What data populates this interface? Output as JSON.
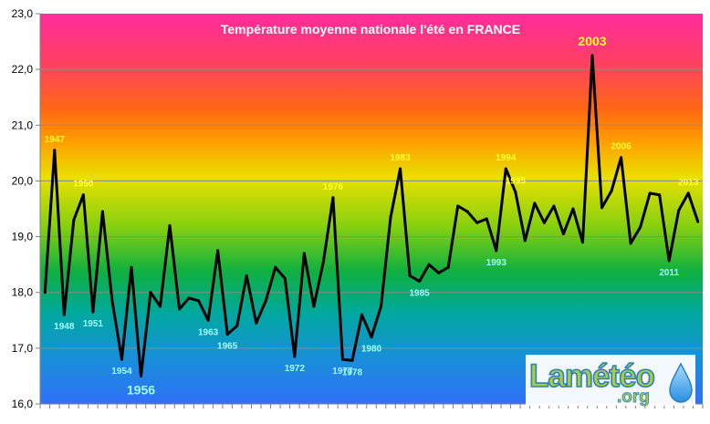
{
  "chart_data": {
    "type": "line",
    "title": "Température moyenne nationale l'été en FRANCE",
    "xlabel": "",
    "ylabel": "",
    "ylim": [
      16,
      23
    ],
    "y_ticks": [
      "16,0",
      "17,0",
      "18,0",
      "19,0",
      "20,0",
      "21,0",
      "22,0",
      "23,0"
    ],
    "grid": true,
    "legend": "none",
    "background": "vertical rainbow gradient (pink/red top, orange, yellow, green, teal, blue bottom)",
    "series": [
      {
        "color": "#000000",
        "x": [
          1946,
          1947,
          1948,
          1949,
          1950,
          1951,
          1952,
          1953,
          1954,
          1955,
          1956,
          1957,
          1958,
          1959,
          1960,
          1961,
          1962,
          1963,
          1964,
          1965,
          1966,
          1967,
          1968,
          1969,
          1970,
          1971,
          1972,
          1973,
          1974,
          1975,
          1976,
          1977,
          1978,
          1979,
          1980,
          1981,
          1982,
          1983,
          1984,
          1985,
          1986,
          1987,
          1988,
          1989,
          1990,
          1991,
          1992,
          1993,
          1994,
          1995,
          1996,
          1997,
          1998,
          1999,
          2000,
          2001,
          2002,
          2003,
          2004,
          2005,
          2006,
          2007,
          2008,
          2009,
          2010,
          2011,
          2012,
          2013,
          2014
        ],
        "values": [
          18.0,
          20.55,
          17.6,
          19.3,
          19.75,
          17.65,
          19.45,
          17.85,
          16.8,
          18.45,
          16.5,
          18.0,
          17.75,
          19.2,
          17.7,
          17.9,
          17.85,
          17.5,
          18.75,
          17.25,
          17.4,
          18.3,
          17.45,
          17.85,
          18.45,
          18.25,
          16.85,
          18.7,
          17.75,
          18.55,
          19.7,
          16.8,
          16.78,
          17.6,
          17.2,
          17.75,
          19.35,
          20.22,
          18.3,
          18.2,
          18.5,
          18.35,
          18.45,
          19.55,
          19.45,
          19.25,
          19.32,
          18.75,
          20.22,
          19.8,
          18.93,
          19.6,
          19.25,
          19.55,
          19.05,
          19.5,
          18.9,
          22.25,
          19.52,
          19.82,
          20.42,
          18.88,
          19.17,
          19.78,
          19.75,
          18.57,
          19.47,
          19.78,
          19.27
        ]
      }
    ],
    "annotations": [
      {
        "label": "1947",
        "year": 1947,
        "color": "#ffff33"
      },
      {
        "label": "1948",
        "year": 1948,
        "color": "#9ffcff"
      },
      {
        "label": "1950",
        "year": 1950,
        "color": "#ffff33"
      },
      {
        "label": "1951",
        "year": 1951,
        "color": "#9ffcff"
      },
      {
        "label": "1954",
        "year": 1954,
        "color": "#9ffcff"
      },
      {
        "label": "1956",
        "year": 1956,
        "color": "#9ffcff"
      },
      {
        "label": "1963",
        "year": 1963,
        "color": "#9ffcff"
      },
      {
        "label": "1965",
        "year": 1965,
        "color": "#9ffcff"
      },
      {
        "label": "1972",
        "year": 1972,
        "color": "#9ffcff"
      },
      {
        "label": "1976",
        "year": 1976,
        "color": "#ffff33"
      },
      {
        "label": "1977",
        "year": 1977,
        "color": "#9ffcff"
      },
      {
        "label": "1978",
        "year": 1978,
        "color": "#9ffcff"
      },
      {
        "label": "1980",
        "year": 1980,
        "color": "#9ffcff"
      },
      {
        "label": "1983",
        "year": 1983,
        "color": "#ffff33"
      },
      {
        "label": "1985",
        "year": 1985,
        "color": "#9ffcff"
      },
      {
        "label": "1993",
        "year": 1993,
        "color": "#9ffcff"
      },
      {
        "label": "1994",
        "year": 1994,
        "color": "#ffff33"
      },
      {
        "label": "1995",
        "year": 1995,
        "color": "#ffff33"
      },
      {
        "label": "2003",
        "year": 2003,
        "color": "#ffff33"
      },
      {
        "label": "2006",
        "year": 2006,
        "color": "#ffff33"
      },
      {
        "label": "2011",
        "year": 2011,
        "color": "#9ffcff"
      },
      {
        "label": "2013",
        "year": 2013,
        "color": "#ffff33"
      }
    ]
  },
  "logo": {
    "name": "Lameteo",
    "text_main": "Lamétéo",
    "text_sub": ".org",
    "icon": "water-drop-icon"
  }
}
